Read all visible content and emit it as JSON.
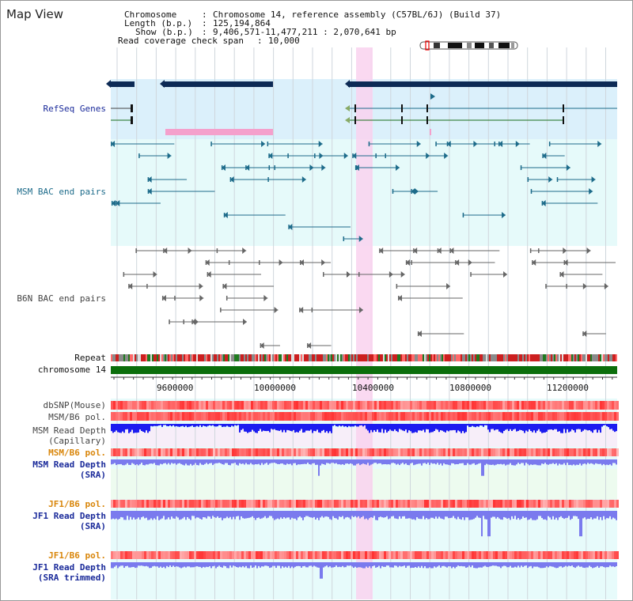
{
  "header": {
    "title": "Map View",
    "chromosome_key": "Chromosome",
    "chromosome_value": "Chromosome 14, reference assembly (C57BL/6J) (Build 37)",
    "length_key": "Length (b.p.)",
    "length_value": "125,194,864",
    "show_key": "Show (b.p.)",
    "show_value": "9,406,571-11,477,211 : 2,070,641 bp",
    "coverage_key": "Read coverage check span",
    "coverage_value": "10,000"
  },
  "tracks": {
    "refseq": "RefSeq Genes",
    "msm_bac": "MSM BAC end pairs",
    "b6n_bac": "B6N BAC end pairs",
    "repeat": "Repeat",
    "chromosome": "chromosome 14",
    "dbsnp": "dbSNP(Mouse)",
    "msm_pol_1": "MSM/B6 pol.",
    "msm_depth_cap_1": "MSM Read Depth",
    "msm_depth_cap_2": "(Capillary)",
    "msm_pol_2": "MSM/B6 pol.",
    "msm_depth_sra_1": "MSM Read Depth",
    "msm_depth_sra_2": "(SRA)",
    "jf1_pol_1": "JF1/B6 pol.",
    "jf1_depth_sra_1": "JF1 Read Depth",
    "jf1_depth_sra_2": "(SRA)",
    "jf1_pol_2": "JF1/B6 pol.",
    "jf1_depth_trim_1": "JF1 Read Depth",
    "jf1_depth_trim_2": "(SRA trimmed)"
  },
  "axis": {
    "ticks": [
      "9600000",
      "10000000",
      "10400000",
      "10800000",
      "11200000"
    ]
  },
  "colors": {
    "navy": "#0d2a55",
    "refseq_bg": "#dbf0fb",
    "bac_bg": "#e6fafa",
    "lower_bg": "#e7fbfb",
    "highlight": "#f9d2ee",
    "msm_feature": "#1d6b8a",
    "b6n_feature": "#666666",
    "chrom_green": "#0b6e0b",
    "depth_blue": "#1c1cf0",
    "depth_violet": "#7a7aee",
    "label_blue": "#1a2a9a",
    "label_orange": "#d9860b"
  }
}
